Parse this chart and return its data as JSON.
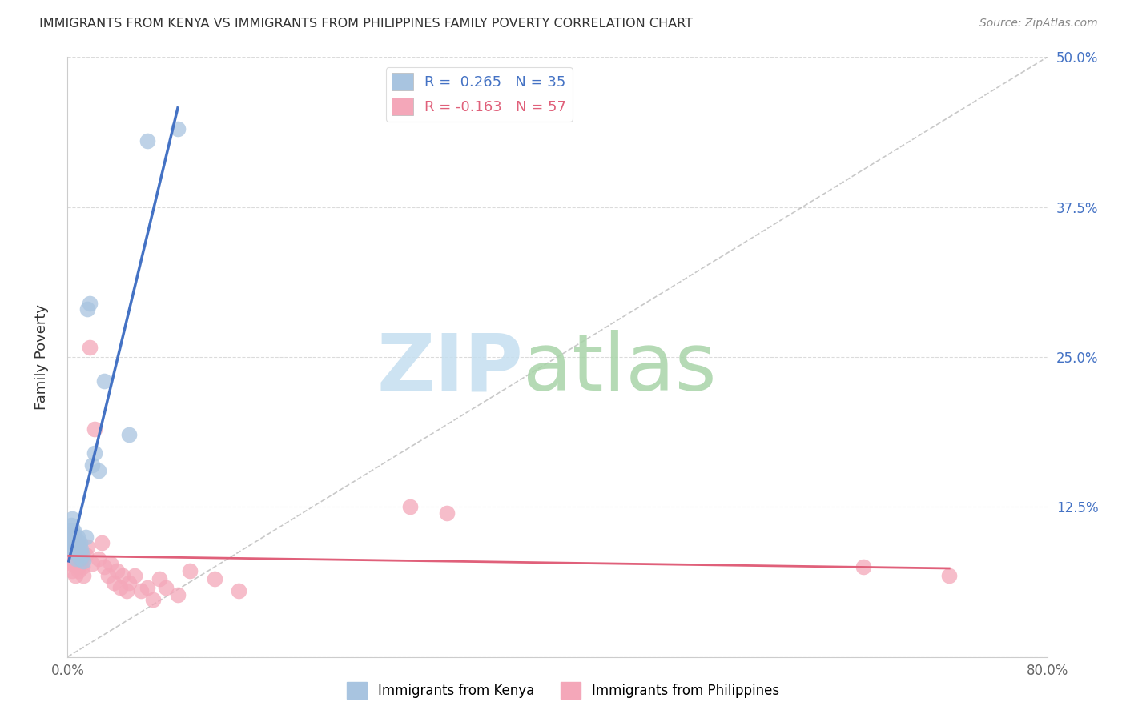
{
  "title": "IMMIGRANTS FROM KENYA VS IMMIGRANTS FROM PHILIPPINES FAMILY POVERTY CORRELATION CHART",
  "source": "Source: ZipAtlas.com",
  "ylabel": "Family Poverty",
  "xlim": [
    0.0,
    0.8
  ],
  "ylim": [
    0.0,
    0.5
  ],
  "ytick_positions": [
    0.0,
    0.125,
    0.25,
    0.375,
    0.5
  ],
  "ytick_labels_right": [
    "",
    "12.5%",
    "25.0%",
    "37.5%",
    "50.0%"
  ],
  "grid_color": "#cccccc",
  "background_color": "#ffffff",
  "kenya_color": "#a8c4e0",
  "kenya_line_color": "#4472c4",
  "philippines_color": "#f4a7b9",
  "philippines_line_color": "#e0607a",
  "kenya_R": 0.265,
  "kenya_N": 35,
  "philippines_R": -0.163,
  "philippines_N": 57,
  "kenya_scatter_x": [
    0.001,
    0.002,
    0.002,
    0.003,
    0.003,
    0.004,
    0.004,
    0.004,
    0.005,
    0.005,
    0.005,
    0.006,
    0.006,
    0.007,
    0.007,
    0.007,
    0.008,
    0.008,
    0.009,
    0.009,
    0.01,
    0.01,
    0.011,
    0.012,
    0.013,
    0.015,
    0.016,
    0.018,
    0.02,
    0.022,
    0.025,
    0.03,
    0.05,
    0.065,
    0.09
  ],
  "kenya_scatter_y": [
    0.09,
    0.105,
    0.095,
    0.11,
    0.1,
    0.105,
    0.115,
    0.095,
    0.09,
    0.105,
    0.095,
    0.088,
    0.1,
    0.092,
    0.098,
    0.082,
    0.1,
    0.088,
    0.095,
    0.085,
    0.095,
    0.082,
    0.09,
    0.085,
    0.08,
    0.1,
    0.29,
    0.295,
    0.16,
    0.17,
    0.155,
    0.23,
    0.185,
    0.43,
    0.44
  ],
  "philippines_scatter_x": [
    0.001,
    0.001,
    0.002,
    0.002,
    0.003,
    0.003,
    0.003,
    0.004,
    0.004,
    0.004,
    0.005,
    0.005,
    0.005,
    0.006,
    0.006,
    0.006,
    0.007,
    0.007,
    0.008,
    0.008,
    0.009,
    0.009,
    0.01,
    0.01,
    0.011,
    0.012,
    0.013,
    0.015,
    0.016,
    0.018,
    0.02,
    0.022,
    0.025,
    0.028,
    0.03,
    0.033,
    0.035,
    0.038,
    0.04,
    0.043,
    0.045,
    0.048,
    0.05,
    0.055,
    0.06,
    0.065,
    0.07,
    0.075,
    0.08,
    0.09,
    0.1,
    0.12,
    0.14,
    0.28,
    0.31,
    0.65,
    0.72
  ],
  "philippines_scatter_y": [
    0.095,
    0.085,
    0.102,
    0.092,
    0.098,
    0.088,
    0.078,
    0.095,
    0.085,
    0.072,
    0.1,
    0.09,
    0.078,
    0.092,
    0.082,
    0.068,
    0.095,
    0.082,
    0.088,
    0.075,
    0.085,
    0.072,
    0.09,
    0.078,
    0.082,
    0.075,
    0.068,
    0.085,
    0.092,
    0.258,
    0.078,
    0.19,
    0.082,
    0.095,
    0.075,
    0.068,
    0.078,
    0.062,
    0.072,
    0.058,
    0.068,
    0.055,
    0.062,
    0.068,
    0.055,
    0.058,
    0.048,
    0.065,
    0.058,
    0.052,
    0.072,
    0.065,
    0.055,
    0.125,
    0.12,
    0.075,
    0.068
  ],
  "legend_kenya_label": "R =  0.265   N = 35",
  "legend_phil_label": "R = -0.163   N = 57",
  "bottom_legend_kenya": "Immigrants from Kenya",
  "bottom_legend_phil": "Immigrants from Philippines"
}
